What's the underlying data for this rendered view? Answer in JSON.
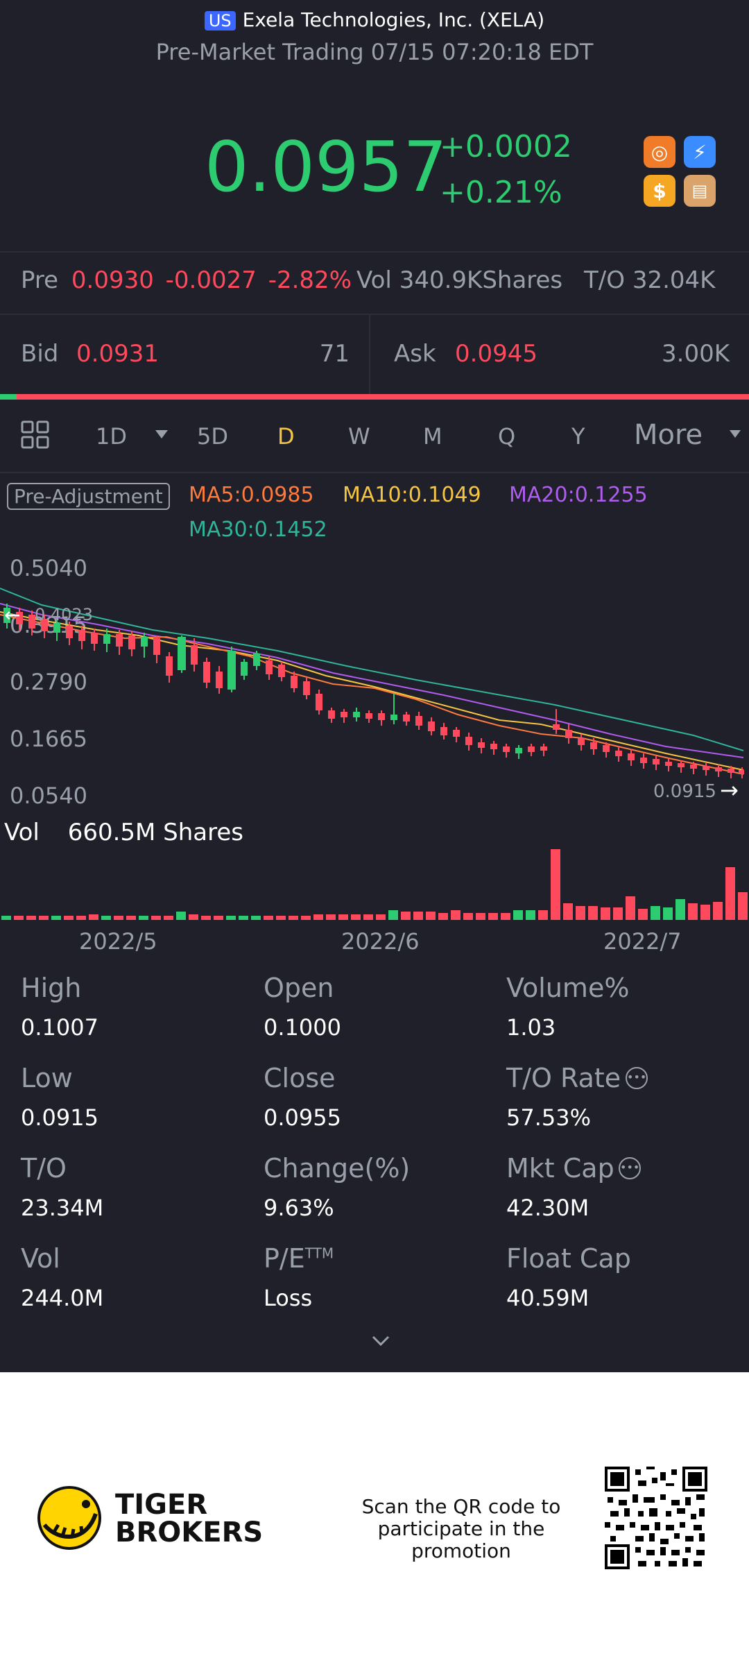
{
  "header": {
    "market_badge": "US",
    "title": "Exela Technologies, Inc. (XELA)",
    "subtitle": "Pre-Market Trading 07/15 07:20:18 EDT"
  },
  "quote": {
    "price": "0.0957",
    "change": "+0.0002",
    "change_pct": "+0.21%",
    "icons": [
      "chart-icon",
      "flash-icon",
      "dollar-icon",
      "book-icon"
    ]
  },
  "pre": {
    "label": "Pre",
    "price": "0.0930",
    "change": "-0.0027",
    "change_pct": "-2.82%",
    "vol_label": "Vol",
    "vol_value": "340.9KShares",
    "to_label": "T/O",
    "to_value": "32.04K"
  },
  "bidask": {
    "bid_label": "Bid",
    "bid_price": "0.0931",
    "bid_size": "71",
    "ask_label": "Ask",
    "ask_price": "0.0945",
    "ask_size": "3.00K"
  },
  "timeframes": [
    "1D",
    "5D",
    "D",
    "W",
    "M",
    "Q",
    "Y"
  ],
  "more_label": "More",
  "indicators": {
    "adjustment": "Pre-Adjustment",
    "ma5": "MA5:0.0985",
    "ma10": "MA10:0.1049",
    "ma20": "MA20:0.1255",
    "ma30": "MA30:0.1452"
  },
  "price_axis": [
    "0.5040",
    "0.3915",
    "0.2790",
    "0.1665",
    "0.0540"
  ],
  "annotations": {
    "high_marker": "0.4023",
    "low_marker": "0.0915"
  },
  "volume": {
    "label": "Vol",
    "value": "660.5M Shares"
  },
  "dates": [
    "2022/5",
    "2022/6",
    "2022/7"
  ],
  "stats": [
    {
      "label": "High",
      "value": "0.1007"
    },
    {
      "label": "Open",
      "value": "0.1000"
    },
    {
      "label": "Volume%",
      "value": "1.03"
    },
    {
      "label": "Low",
      "value": "0.0915"
    },
    {
      "label": "Close",
      "value": "0.0955"
    },
    {
      "label": "T/O Rate",
      "value": "57.53%"
    },
    {
      "label": "T/O",
      "value": "23.34M"
    },
    {
      "label": "Change(%)",
      "value": "9.63%"
    },
    {
      "label": "Mkt Cap",
      "value": "42.30M"
    },
    {
      "label": "Vol",
      "value": "244.0M"
    },
    {
      "label": "P/E",
      "value": "Loss"
    },
    {
      "label": "Float Cap",
      "value": "40.59M"
    }
  ],
  "pe_superscript": "TTM",
  "footer": {
    "brand_line1": "TIGER",
    "brand_line2": "BROKERS",
    "promo_line1": "Scan the QR code to",
    "promo_line2": "participate in the promotion"
  },
  "colors": {
    "background": "#1f2029",
    "up": "#2ecc71",
    "down": "#ff4a5d",
    "ma5": "#ff7a3d",
    "ma10": "#f5c542",
    "ma20": "#b05cf0",
    "ma30": "#2fb59a",
    "active_tab": "#f5c542"
  }
}
